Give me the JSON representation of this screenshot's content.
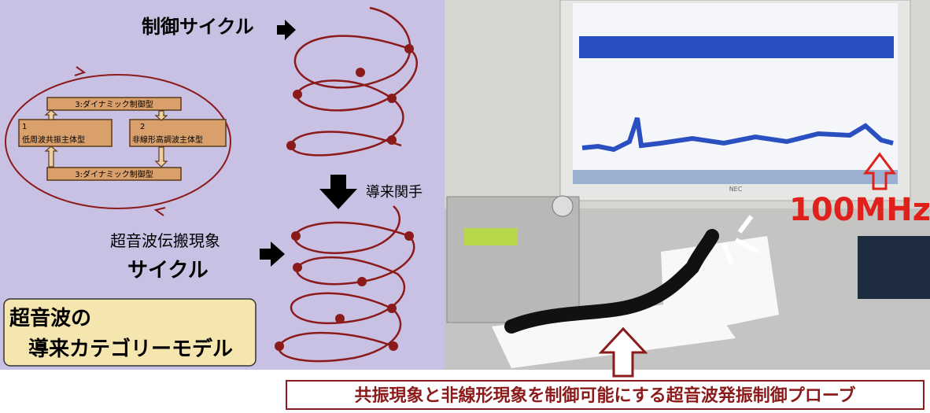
{
  "diagram": {
    "cycle_label": "制御サイクル",
    "top_box": "3:ダイナミック制御型",
    "box1_number": "1",
    "box1_label": "低周波共振主体型",
    "box2_number": "2",
    "box2_label": "非線形高調波主体型",
    "bottom_box": "3:ダイナミック制御型",
    "functor_label": "導来関手",
    "propagation_label_1": "超音波伝搬現象",
    "propagation_label_2": "サイクル",
    "model_title_1": "超音波の",
    "model_title_2": "導来カテゴリーモデル"
  },
  "photo": {
    "monitor_brand": "NEC",
    "frequency_label": "100MHz"
  },
  "caption": "共振現象と非線形現象を制御可能にする超音波発振制御プローブ"
}
